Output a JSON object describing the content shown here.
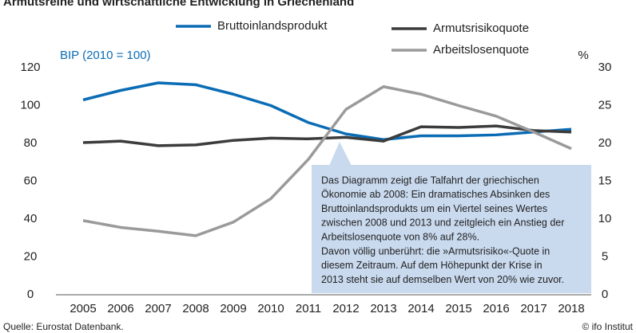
{
  "chart_data": {
    "type": "line",
    "title": "Armutsreihe und wirtschaftliche Entwicklung in Griechenland",
    "y_label": "BIP (2010 = 100)",
    "y2_label": "%",
    "categories": [
      "2005",
      "2006",
      "2007",
      "2008",
      "2009",
      "2010",
      "2011",
      "2012",
      "2013",
      "2014",
      "2015",
      "2016",
      "2017",
      "2018"
    ],
    "series": [
      {
        "name": "Bruttoinlandsprodukt",
        "color": "#0a6cb5",
        "values": [
          103,
          108,
          112,
          111,
          106,
          100,
          91,
          85,
          82,
          84,
          84,
          84.5,
          86,
          87.5
        ]
      },
      {
        "name": "Armutsrisikoquote",
        "color": "#3c3c3c",
        "axis": "y2",
        "values": [
          20.1,
          20.3,
          19.7,
          19.8,
          20.4,
          20.7,
          20.6,
          20.8,
          20.3,
          22.2,
          22.1,
          22.3,
          21.7,
          21.5
        ]
      },
      {
        "name": "Arbeitslosenquote",
        "color": "#9a9a9a",
        "axis": "y2",
        "values": [
          9.8,
          8.9,
          8.4,
          7.8,
          9.6,
          12.7,
          17.9,
          24.5,
          27.5,
          26.5,
          25.0,
          23.6,
          21.5,
          19.3
        ]
      }
    ],
    "ylim": [
      0,
      120
    ],
    "yticks": [
      0,
      20,
      40,
      60,
      80,
      100,
      120
    ],
    "y2lim": [
      0,
      30
    ],
    "y2ticks": [
      0,
      5,
      10,
      15,
      20,
      25,
      30
    ],
    "grid": false,
    "annotation": [
      "Das Diagramm zeigt die Talfahrt der griechischen",
      "Ökonomie ab 2008: Ein dramatisches Absinken des",
      "Bruttoinlandsprodukts um ein Viertel seines Wertes",
      "zwischen 2008 und 2013 und zeitgleich ein Anstieg der",
      "Arbeitslosenquote von 8% auf 28%.",
      "Davon völlig unberührt: die »Armutsrisiko«-Quote in",
      "diesem Zeitraum. Auf dem Höhepunkt der Krise in",
      "2013 steht sie auf demselben Wert von 20% wie zuvor."
    ],
    "source": "Quelle: Eurostat Datenbank.",
    "credit": "© ifo Institut"
  }
}
